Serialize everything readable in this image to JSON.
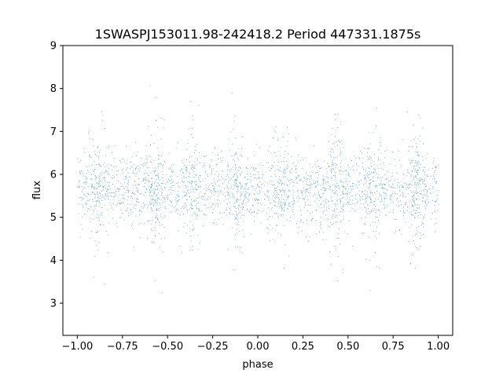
{
  "chart_data": {
    "type": "scatter",
    "title": "1SWASPJ153011.98-242418.2 Period 447331.1875s",
    "xlabel": "phase",
    "ylabel": "flux",
    "xlim": [
      -1.08,
      1.08
    ],
    "ylim": [
      2.25,
      9.0
    ],
    "x_ticks": [
      -1.0,
      -0.75,
      -0.5,
      -0.25,
      0.0,
      0.25,
      0.5,
      0.75,
      1.0
    ],
    "x_tick_labels": [
      "−1.00",
      "−0.75",
      "−0.50",
      "−0.25",
      "0.00",
      "0.25",
      "0.50",
      "0.75",
      "1.00"
    ],
    "y_ticks": [
      3,
      4,
      5,
      6,
      7,
      8,
      9
    ],
    "y_tick_labels": [
      "3",
      "4",
      "5",
      "6",
      "7",
      "8",
      "9"
    ],
    "grid": false,
    "point_color": "#1f77b4",
    "series": [
      {
        "phase_range": [
          -1.0,
          1.0
        ],
        "flux_median": 5.65,
        "flux_core_range": [
          4.7,
          6.5
        ],
        "flux_full_range": [
          2.6,
          8.7
        ],
        "approx_point_count": 45000,
        "dense_vertical_streaks_at_phase": [
          -0.88,
          -0.57,
          -0.37,
          -0.12,
          0.12,
          0.43,
          0.63,
          0.88
        ]
      }
    ]
  }
}
